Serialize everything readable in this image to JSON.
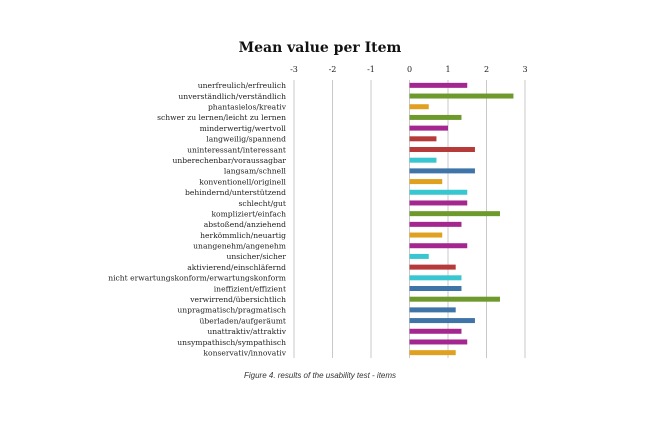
{
  "chart_data": {
    "type": "bar",
    "orientation": "horizontal",
    "title": "Mean value per Item",
    "caption": "Figure 4. results of the usability test - items",
    "xlim": [
      -3,
      3
    ],
    "xticks": [
      "-3",
      "-2",
      "-1",
      "0",
      "1",
      "2",
      "3"
    ],
    "grid": true,
    "legend": "none",
    "colors": {
      "purple": "#a3278f",
      "green": "#6e9a2d",
      "orange": "#e0a020",
      "red": "#b73a3a",
      "cyan": "#38c6d0",
      "blue": "#3f74a8"
    },
    "items": [
      {
        "label": "unerfreulich/erfreulich",
        "value": 1.5,
        "color": "#a3278f"
      },
      {
        "label": "unverständlich/verständlich",
        "value": 2.7,
        "color": "#6e9a2d"
      },
      {
        "label": "phantasielos/kreativ",
        "value": 0.5,
        "color": "#e0a020"
      },
      {
        "label": "schwer zu lernen/leicht zu lernen",
        "value": 1.35,
        "color": "#6e9a2d"
      },
      {
        "label": "minderwertig/wertvoll",
        "value": 1.0,
        "color": "#a3278f"
      },
      {
        "label": "langweilig/spannend",
        "value": 0.7,
        "color": "#b73a3a"
      },
      {
        "label": "uninteressant/interessant",
        "value": 1.7,
        "color": "#b73a3a"
      },
      {
        "label": "unberechenbar/voraussagbar",
        "value": 0.7,
        "color": "#38c6d0"
      },
      {
        "label": "langsam/schnell",
        "value": 1.7,
        "color": "#3f74a8"
      },
      {
        "label": "konventionell/originell",
        "value": 0.85,
        "color": "#e0a020"
      },
      {
        "label": "behindernd/unterstützend",
        "value": 1.5,
        "color": "#38c6d0"
      },
      {
        "label": "schlecht/gut",
        "value": 1.5,
        "color": "#a3278f"
      },
      {
        "label": "kompliziert/einfach",
        "value": 2.35,
        "color": "#6e9a2d"
      },
      {
        "label": "abstoßend/anziehend",
        "value": 1.35,
        "color": "#a3278f"
      },
      {
        "label": "herkömmlich/neuartig",
        "value": 0.85,
        "color": "#e0a020"
      },
      {
        "label": "unangenehm/angenehm",
        "value": 1.5,
        "color": "#a3278f"
      },
      {
        "label": "unsicher/sicher",
        "value": 0.5,
        "color": "#38c6d0"
      },
      {
        "label": "aktivierend/einschläfernd",
        "value": 1.2,
        "color": "#b73a3a"
      },
      {
        "label": "nicht erwartungskonform/erwartungskonform",
        "value": 1.35,
        "color": "#38c6d0"
      },
      {
        "label": "ineffizient/effizient",
        "value": 1.35,
        "color": "#3f74a8"
      },
      {
        "label": "verwirrend/übersichtlich",
        "value": 2.35,
        "color": "#6e9a2d"
      },
      {
        "label": "unpragmatisch/pragmatisch",
        "value": 1.2,
        "color": "#3f74a8"
      },
      {
        "label": "überladen/aufgeräumt",
        "value": 1.7,
        "color": "#3f74a8"
      },
      {
        "label": "unattraktiv/attraktiv",
        "value": 1.35,
        "color": "#a3278f"
      },
      {
        "label": "unsympathisch/sympathisch",
        "value": 1.5,
        "color": "#a3278f"
      },
      {
        "label": "konservativ/innovativ",
        "value": 1.2,
        "color": "#e0a020"
      }
    ]
  }
}
